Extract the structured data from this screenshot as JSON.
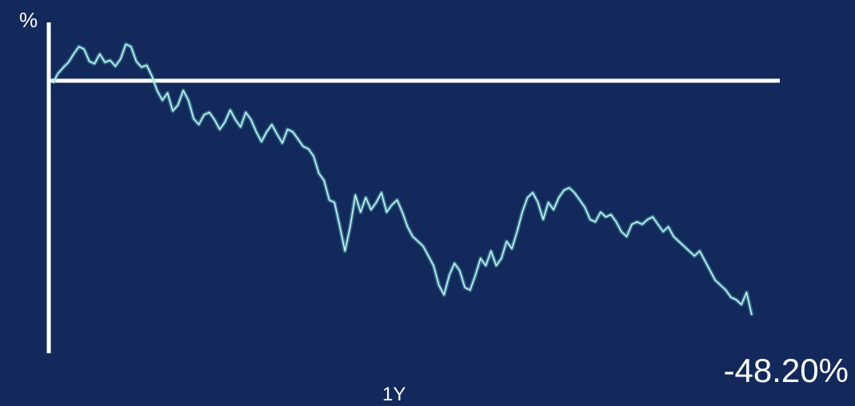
{
  "chart_data": {
    "type": "line",
    "ylabel": "%",
    "xlabel": "1Y",
    "end_label": "-48.20%",
    "colors": {
      "background": "#13295c",
      "axis": "#ffffff",
      "line": "#5ecfcf"
    },
    "ylim": [
      -56,
      12
    ],
    "baseline": 0,
    "series": [
      {
        "values": [
          -0.5,
          1.5,
          2.7,
          3.8,
          5.5,
          7.0,
          6.5,
          4.0,
          3.5,
          5.5,
          3.8,
          4.2,
          3.0,
          4.5,
          7.5,
          7.0,
          4.0,
          2.8,
          3.2,
          1.0,
          -2.0,
          -4.0,
          -2.5,
          -6.2,
          -5.0,
          -2.0,
          -4.0,
          -7.8,
          -9.0,
          -7.0,
          -6.5,
          -8.0,
          -10.0,
          -8.5,
          -6.0,
          -8.0,
          -9.5,
          -6.5,
          -8.0,
          -10.5,
          -12.5,
          -10.5,
          -9.0,
          -11.0,
          -12.8,
          -10.0,
          -10.5,
          -12.0,
          -13.5,
          -14.0,
          -15.5,
          -19.0,
          -20.5,
          -24.5,
          -25.0,
          -29.8,
          -35.0,
          -30.0,
          -23.5,
          -27.0,
          -24.0,
          -26.5,
          -25.0,
          -23.0,
          -27.0,
          -25.5,
          -24.5,
          -27.0,
          -30.0,
          -32.0,
          -33.0,
          -34.0,
          -36.0,
          -38.0,
          -42.0,
          -44.0,
          -40.0,
          -37.5,
          -39.0,
          -42.5,
          -43.0,
          -40.0,
          -36.5,
          -38.0,
          -35.0,
          -38.0,
          -36.5,
          -33.0,
          -34.5,
          -31.0,
          -27.0,
          -24.0,
          -23.0,
          -25.0,
          -28.5,
          -25.0,
          -26.5,
          -24.0,
          -22.5,
          -22.0,
          -23.0,
          -24.5,
          -26.0,
          -28.5,
          -29.0,
          -27.0,
          -28.0,
          -27.5,
          -29.0,
          -31.0,
          -32.0,
          -29.5,
          -29.0,
          -29.5,
          -28.5,
          -28.0,
          -29.5,
          -31.0,
          -30.0,
          -32.0,
          -33.0,
          -34.0,
          -35.0,
          -36.0,
          -35.0,
          -37.0,
          -39.0,
          -41.0,
          -42.0,
          -43.0,
          -44.5,
          -45.0,
          -46.0,
          -43.5,
          -48.2
        ]
      }
    ]
  }
}
